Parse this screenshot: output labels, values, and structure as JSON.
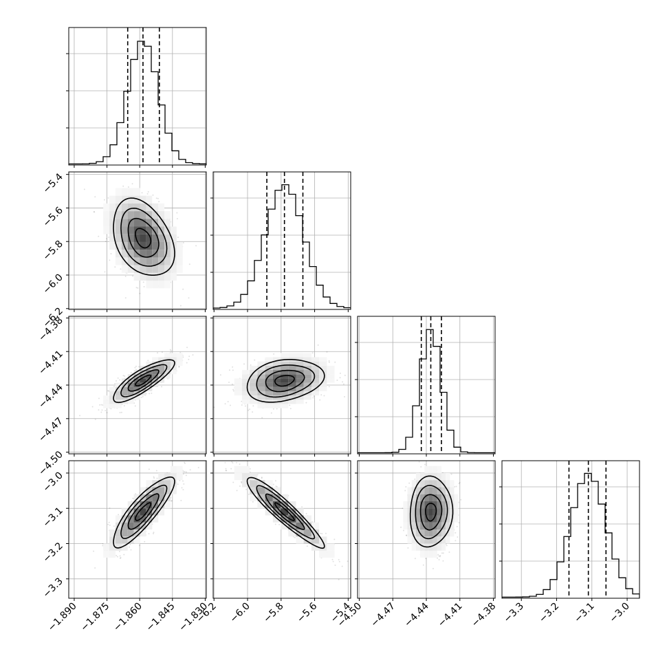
{
  "chart_data": {
    "type": "corner",
    "params": [
      {
        "ticks": [
          "−1.890",
          "−1.875",
          "−1.860",
          "−1.845",
          "−1.830"
        ],
        "tick_values": [
          -1.89,
          -1.875,
          -1.86,
          -1.845,
          -1.83
        ],
        "range": [
          -1.8925,
          -1.8295
        ],
        "mean": -1.8585,
        "sd": 0.007,
        "quantiles": [
          -1.8655,
          -1.8585,
          -1.851
        ]
      },
      {
        "ticks": [
          "−6.2",
          "−6.0",
          "−5.8",
          "−5.6",
          "−5.4"
        ],
        "tick_values": [
          -6.2,
          -6.0,
          -5.8,
          -5.6,
          -5.4
        ],
        "range": [
          -6.205,
          -5.385
        ],
        "mean": -5.78,
        "sd": 0.115,
        "quantiles": [
          -5.885,
          -5.78,
          -5.67
        ]
      },
      {
        "ticks": [
          "−4.50",
          "−4.47",
          "−4.44",
          "−4.41",
          "−4.38"
        ],
        "tick_values": [
          -4.5,
          -4.47,
          -4.44,
          -4.41,
          -4.38
        ],
        "range": [
          -4.5015,
          -4.3785
        ],
        "mean": -4.436,
        "sd": 0.0095,
        "quantiles": [
          -4.4445,
          -4.436,
          -4.4265
        ]
      },
      {
        "ticks": [
          "−3.3",
          "−3.2",
          "−3.1",
          "−3.0"
        ],
        "tick_values": [
          -3.3,
          -3.2,
          -3.1,
          -3.0
        ],
        "range": [
          -3.355,
          -2.965
        ],
        "mean": -3.11,
        "sd": 0.05,
        "quantiles": [
          -3.165,
          -3.11,
          -3.06
        ]
      }
    ],
    "correlations": {
      "1-0": -0.35,
      "2-0": 0.82,
      "2-1": 0.25,
      "3-0": 0.85,
      "3-1": -0.93,
      "3-2": 0.05
    },
    "histogram_bins": 20,
    "quantile_lines": "dashed",
    "grid": true
  }
}
